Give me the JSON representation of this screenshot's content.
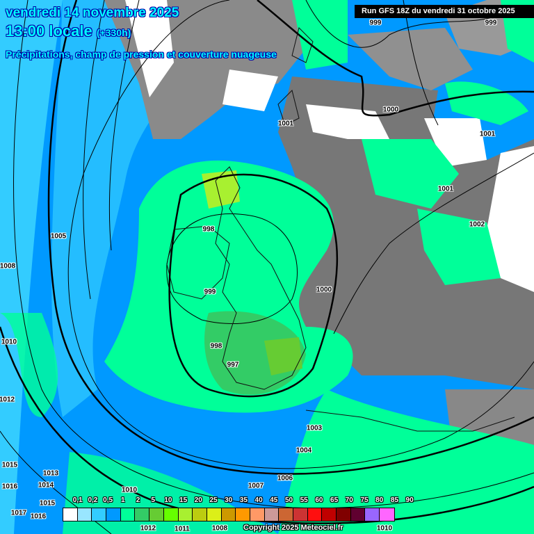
{
  "header": {
    "date": "vendredi 14 novembre 2025",
    "time": "13:00 locale",
    "lead": "(+330h)",
    "product": "Précipitations, champ de pression et couverture nuageuse",
    "run": "Run GFS 18Z du vendredi 31 octobre 2025"
  },
  "pressure_labels": [
    "999",
    "999",
    "1000",
    "1001",
    "1001",
    "1001",
    "1002",
    "998",
    "1005",
    "1008",
    "999",
    "1000",
    "1010",
    "998",
    "997",
    "1012",
    "1003",
    "1004",
    "1013",
    "1015",
    "1016",
    "1014",
    "1010",
    "1007",
    "1006",
    "1015",
    "1017",
    "1016",
    "1008",
    "1012",
    "1011",
    "1010"
  ],
  "legend": {
    "unit_labels": [
      "0,1",
      "0,2",
      "0,5",
      "1",
      "2",
      "5",
      "10",
      "15",
      "20",
      "25",
      "30",
      "35",
      "40",
      "45",
      "50",
      "55",
      "60",
      "65",
      "70",
      "75",
      "80",
      "85",
      "90"
    ],
    "colors": [
      "#ffffff",
      "#99e6ff",
      "#33ccff",
      "#0099ff",
      "#00ff99",
      "#33cc66",
      "#66cc33",
      "#66ff00",
      "#a8f030",
      "#bccc10",
      "#dcef18",
      "#cc9900",
      "#ff9900",
      "#ff9966",
      "#cc9999",
      "#cc6633",
      "#cc3333",
      "#ff0f0f",
      "#c00000",
      "#800000",
      "#600030",
      "#9966ff",
      "#ff66ff"
    ]
  },
  "copyright": "Copyright 2025 Meteociel.fr"
}
